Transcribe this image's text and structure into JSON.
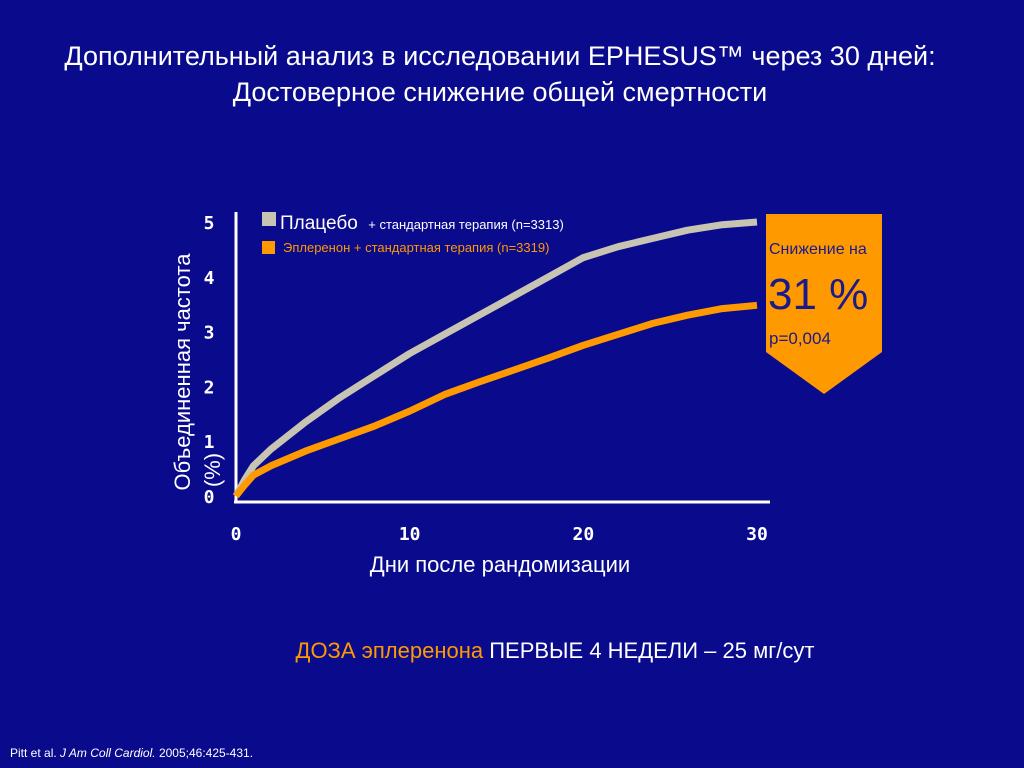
{
  "title": {
    "line1": "Дополнительный анализ в исследовании EPHESUS™ через 30 дней:",
    "line2": "Достоверное снижение общей смертности"
  },
  "colors": {
    "background": "#0a0a8c",
    "placebo": "#c8c4b4",
    "eplerenone": "#ff9900",
    "callout": "#ff9900",
    "callout_text": "#1a1a8a"
  },
  "chart_data": {
    "type": "line",
    "xlabel": "Дни после рандомизации",
    "ylabel_line1": "Объединенная частота",
    "ylabel_line2": "(%)",
    "xlim": [
      0,
      30
    ],
    "ylim": [
      0,
      5
    ],
    "x_ticks": [
      "0",
      "10",
      "20",
      "30"
    ],
    "y_ticks": [
      "0",
      "1",
      "2",
      "3",
      "4",
      "5"
    ],
    "grid": false,
    "series": [
      {
        "name": "Плацебо",
        "name_suffix": "+ стандартная терапия (n=3313)",
        "color": "#c8c4b4",
        "x": [
          0,
          0.5,
          1,
          2,
          4,
          6,
          8,
          10,
          12,
          14,
          16,
          18,
          20,
          22,
          24,
          26,
          28,
          30
        ],
        "y": [
          0,
          0.3,
          0.55,
          0.85,
          1.35,
          1.8,
          2.2,
          2.6,
          2.95,
          3.3,
          3.65,
          4.0,
          4.35,
          4.55,
          4.7,
          4.85,
          4.95,
          5.0
        ]
      },
      {
        "name": "Эплеренон + стандартная терапия (n=3319)",
        "color": "#ff9900",
        "x": [
          0,
          0.5,
          1,
          2,
          4,
          6,
          8,
          10,
          12,
          14,
          16,
          18,
          20,
          22,
          24,
          26,
          28,
          30
        ],
        "y": [
          0,
          0.2,
          0.38,
          0.55,
          0.82,
          1.05,
          1.28,
          1.55,
          1.85,
          2.08,
          2.3,
          2.52,
          2.75,
          2.95,
          3.15,
          3.3,
          3.42,
          3.48
        ]
      }
    ]
  },
  "callout": {
    "line1": "Снижение на",
    "value": "31 %",
    "pvalue": "p=0,004"
  },
  "dose": {
    "orange_part": "ДОЗА эплеренона",
    "white_part": "ПЕРВЫЕ 4 НЕДЕЛИ – 25 мг/сут"
  },
  "citation": {
    "authors": "Pitt et al.",
    "journal": "J Am Coll Cardiol.",
    "ref": "2005;46:425-431."
  }
}
